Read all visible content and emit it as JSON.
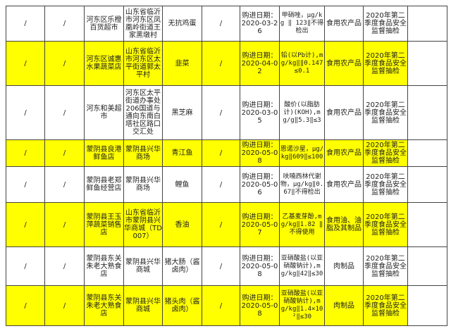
{
  "colors": {
    "highlight": "#ffff00",
    "border": "#444444"
  },
  "rows": [
    {
      "c1": "/",
      "c2": "/",
      "store": "河东区乐橙百货超市",
      "address": "山东省临沂市河东区凤凰岭街道王家黑墩村",
      "product": "无抗鸡蛋",
      "c6": "/",
      "date": "购进日期：2020-03-26",
      "item": "甲硝唑，μg/kg ‖ 123‖不得检出",
      "category": "食用农产品",
      "task": "2020年第二季度食品安全监督抽检",
      "note": "",
      "highlight": false
    },
    {
      "c1": "/",
      "c2": "/",
      "store": "河东区诚惠水果蔬菜店",
      "address": "山东省临沂市河东区太平街道郭太平村",
      "product": "韭菜",
      "c6": "/",
      "date": "购进日期：2020-04-02",
      "item": "铅(以Pb计),mg/kg‖‖0.147 ≤0.1",
      "category": "食用农产品",
      "task": "2020年第二季度食品安全监督抽检",
      "note": "",
      "highlight": true
    },
    {
      "c1": "/",
      "c2": "/",
      "store": "河东和美超市",
      "address": "河东区太平街道办事处206国道与通向东南白塔社区路口交汇处",
      "product": "黑芝麻",
      "c6": "/",
      "date": "购进日期：2020-03-05",
      "item": "酸价(以脂肪计)(KOH),mg/g‖5.3‖≤3",
      "category": "食用农产品",
      "task": "2020年第二季度食品安全监督抽检",
      "note": "",
      "highlight": false
    },
    {
      "c1": "/",
      "c2": "/",
      "store": "蒙阴县良港鲜鱼店",
      "address": "蒙阴县兴华商场",
      "product": "青江鱼",
      "c6": "/",
      "date": "购进日期：2020-05-08",
      "item": "恩诺沙星，μg/kg‖609‖≤100",
      "category": "食用农产品",
      "task": "2020年第二季度食品安全监督抽检",
      "note": "",
      "highlight": true
    },
    {
      "c1": "/",
      "c2": "/",
      "store": "蒙阴县老郑鲜鱼经营店",
      "address": "蒙阴县兴华商场",
      "product": "鲤鱼",
      "c6": "/",
      "date": "购进日期：2020-05-06",
      "item": "呋喃西林代谢物，μg/kg‖0.67‖不得检出",
      "category": "食用农产品",
      "task": "2020年第二季度食品安全监督抽检",
      "note": "",
      "highlight": false
    },
    {
      "c1": "/",
      "c2": "/",
      "store": "蒙阴县王玉萍蔬菜销售店",
      "address": "山东省临沂市蒙阴县兴华商城（TD007）",
      "product": "香油",
      "c6": "/",
      "date": "购进日期：2020-05-07",
      "item": "乙基麦芽酚,mg/kg‖1.82 ‖不得使用",
      "category": "食用油、油脂及其制品",
      "task": "2020年第二季度食品安全监督抽检",
      "note": "",
      "highlight": true
    },
    {
      "c1": "/",
      "c2": "/",
      "store": "蒙阴县东关朱老大熟食店",
      "address": "蒙阴县兴华商城",
      "product": "猪大肠（酱卤肉）",
      "c6": "/",
      "date": "购进日期：2020-05-08",
      "item": "亚硝酸盐(以亚硝酸钠计),mg/kg‖42‖≤30",
      "category": "肉制品",
      "task": "2020年第二季度食品安全监督抽检",
      "note": "",
      "highlight": false
    },
    {
      "c1": "/",
      "c2": "/",
      "store": "蒙阴县东关朱老大熟食店",
      "address": "蒙阴县兴华商城",
      "product": "猪头肉（酱卤肉）",
      "c6": "/",
      "date": "购进日期：2020-05-08",
      "item": "亚硝酸盐(以亚硝酸钠计),mg/kg‖1.4×10²‖≤30",
      "category": "肉制品",
      "task": "2020年第二季度食品安全监督抽检",
      "note": "",
      "highlight": true
    }
  ]
}
